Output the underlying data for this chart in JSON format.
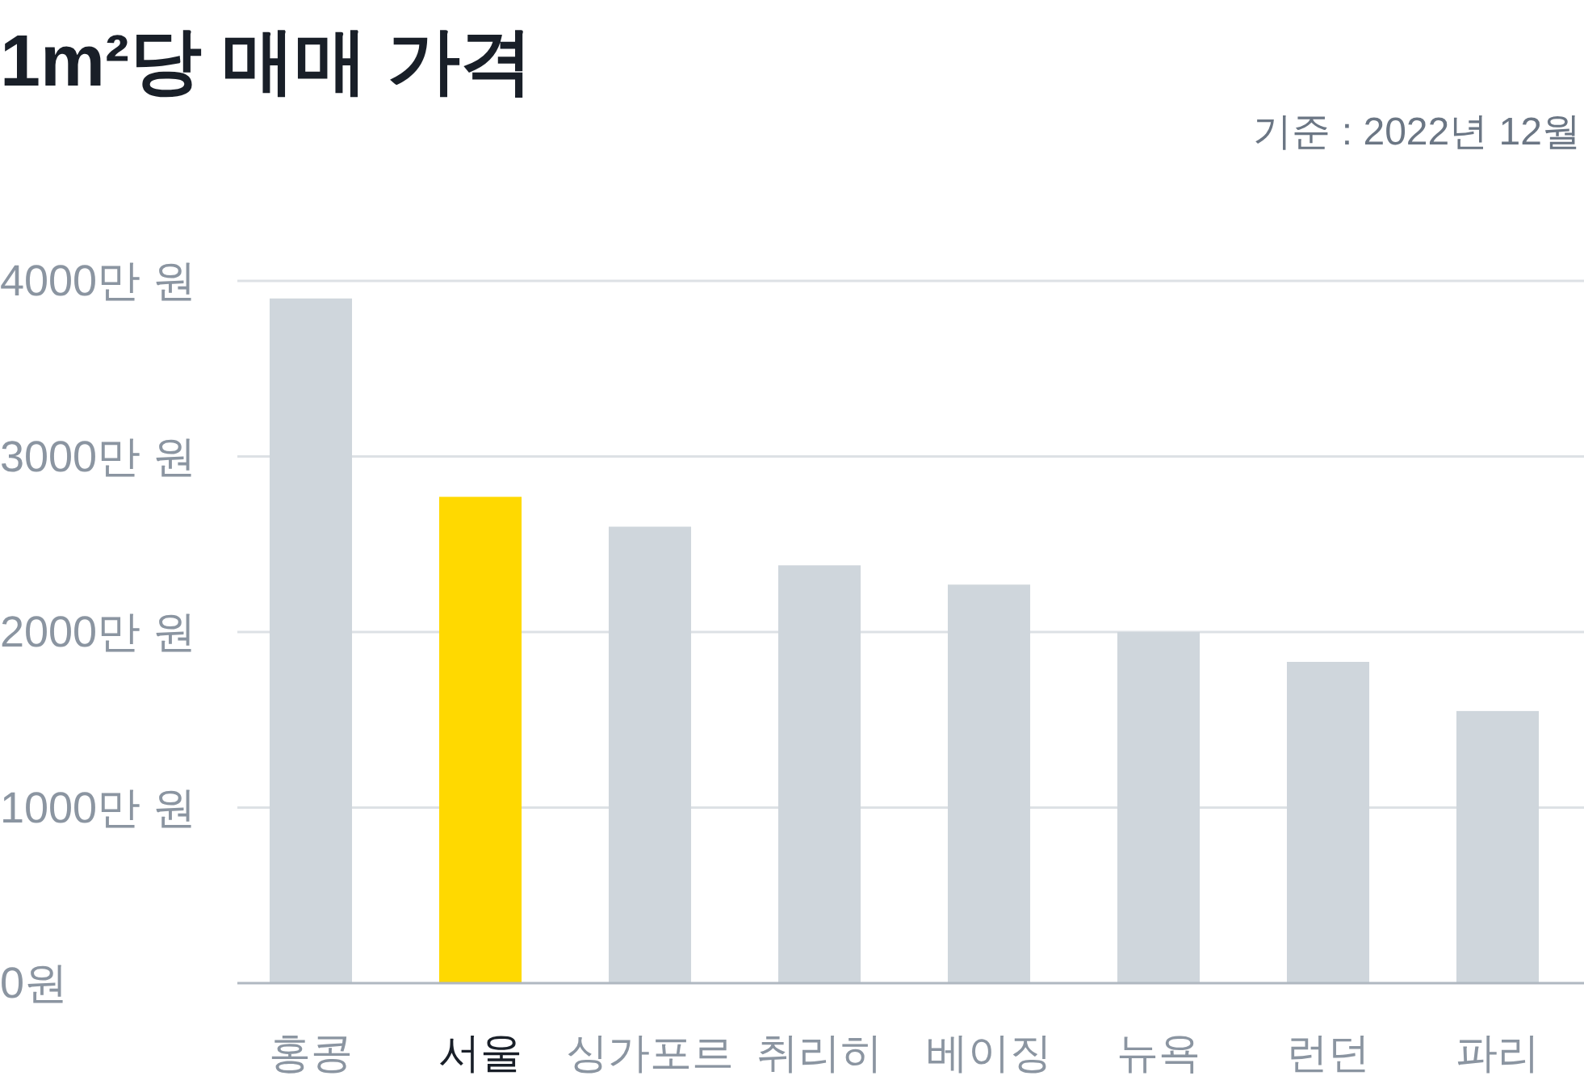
{
  "chart_data": {
    "type": "bar",
    "title": "1m²당 매매 가격",
    "annotations": [
      "기준 : 2022년 12월"
    ],
    "categories": [
      "홍콩",
      "서울",
      "싱가포르",
      "취리히",
      "베이징",
      "뉴욕",
      "런던",
      "파리"
    ],
    "values": [
      3900,
      2770,
      2600,
      2380,
      2270,
      2000,
      1830,
      1550
    ],
    "colors": [
      "#cfd6dc",
      "#ffd900",
      "#cfd6dc",
      "#cfd6dc",
      "#cfd6dc",
      "#cfd6dc",
      "#cfd6dc",
      "#cfd6dc"
    ],
    "ylim": [
      0,
      4000
    ],
    "yticks": [
      {
        "value": 4000,
        "label": "4000만 원"
      },
      {
        "value": 3000,
        "label": "3000만 원"
      },
      {
        "value": 2000,
        "label": "2000만 원"
      },
      {
        "value": 1000,
        "label": "1000만 원"
      },
      {
        "value": 0,
        "label": "0원"
      }
    ],
    "grid": "y"
  }
}
